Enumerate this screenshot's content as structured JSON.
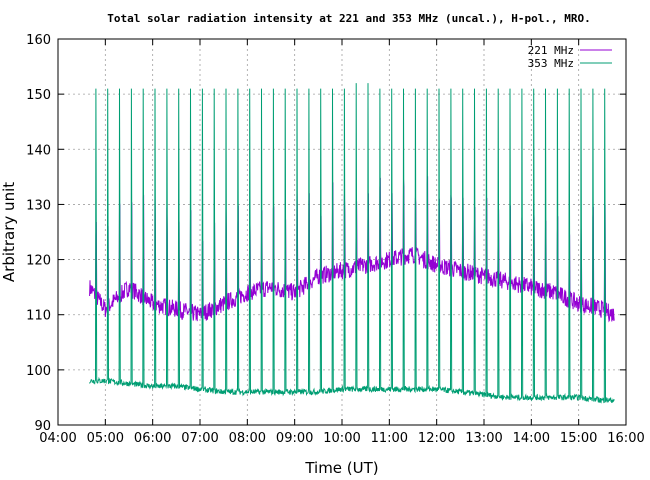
{
  "chart_data": {
    "type": "line",
    "title": "Total solar radiation intensity at 221 and 353 MHz (uncal.), H-pol., MRO.",
    "xlabel": "Time (UT)",
    "ylabel": "Arbitrary unit",
    "xlim": [
      "04:00",
      "16:00"
    ],
    "ylim": [
      90,
      160
    ],
    "x_ticks": [
      "04:00",
      "05:00",
      "06:00",
      "07:00",
      "08:00",
      "09:00",
      "10:00",
      "11:00",
      "12:00",
      "13:00",
      "14:00",
      "15:00",
      "16:00"
    ],
    "y_ticks": [
      90,
      100,
      110,
      120,
      130,
      140,
      150,
      160
    ],
    "grid": true,
    "legend": "top-right",
    "colors": {
      "221 MHz": "#9400d3",
      "353 MHz": "#009e73"
    },
    "series": [
      {
        "name": "221 MHz",
        "x": [
          "04:40",
          "05:00",
          "05:30",
          "06:00",
          "06:30",
          "07:00",
          "07:30",
          "08:00",
          "08:30",
          "09:00",
          "09:30",
          "10:00",
          "10:30",
          "11:00",
          "11:30",
          "12:00",
          "12:30",
          "13:00",
          "13:30",
          "14:00",
          "14:30",
          "15:00",
          "15:30",
          "15:45"
        ],
        "y": [
          115,
          111,
          115,
          112,
          111,
          110,
          112,
          114,
          115,
          114,
          117,
          118,
          119,
          120,
          121,
          119,
          118,
          117,
          116,
          115,
          114,
          112,
          111,
          110
        ],
        "spike_peaks": [
          130,
          131,
          132,
          130,
          129,
          128,
          130,
          131,
          132,
          133,
          133,
          134,
          134,
          135,
          136,
          136,
          134,
          133,
          132,
          131,
          130,
          129,
          128,
          130
        ]
      },
      {
        "name": "353 MHz",
        "x": [
          "04:40",
          "05:00",
          "05:30",
          "06:00",
          "06:30",
          "07:00",
          "07:30",
          "08:00",
          "08:30",
          "09:00",
          "09:30",
          "10:00",
          "10:30",
          "11:00",
          "11:30",
          "12:00",
          "12:30",
          "13:00",
          "13:30",
          "14:00",
          "14:30",
          "15:00",
          "15:30",
          "15:45"
        ],
        "y": [
          98,
          98,
          97.5,
          97,
          97,
          96.5,
          96,
          96,
          96,
          96,
          96,
          96.5,
          96.5,
          96.5,
          96.5,
          96.5,
          96,
          95.5,
          95,
          95,
          95,
          95,
          94.5,
          94.5
        ],
        "spike_peaks": [
          151,
          151,
          151,
          151,
          151,
          151,
          151,
          151,
          151,
          151,
          151,
          151,
          152,
          151,
          151,
          151,
          151,
          151,
          151,
          151,
          151,
          151,
          151,
          151
        ]
      }
    ]
  }
}
